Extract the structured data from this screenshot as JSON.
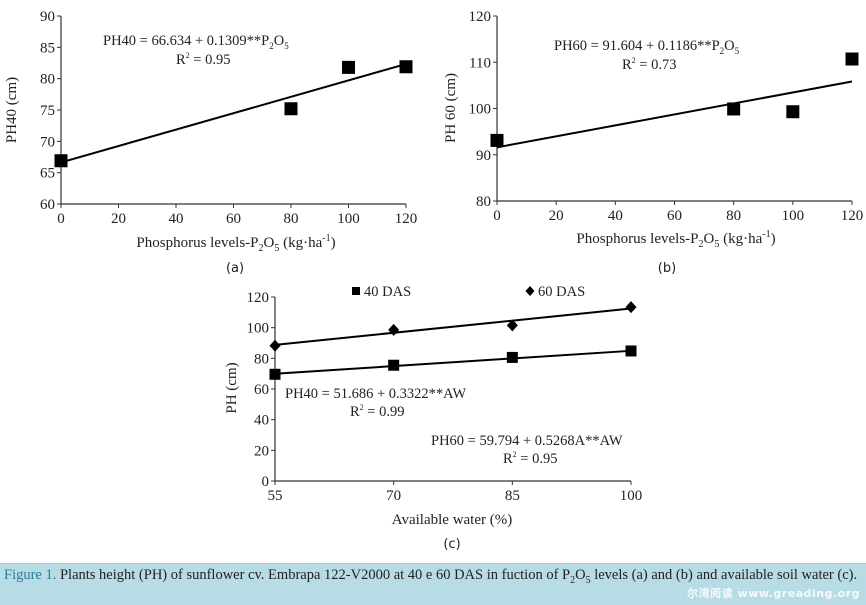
{
  "chart_data": [
    {
      "type": "scatter",
      "panel_label": "(a)",
      "xlabel": "Phosphorus levels-P",
      "xlabel_sub": "2",
      "xlabel_mid": "O",
      "xlabel_sub2": "5",
      "xlabel_tail": " (kg·ha",
      "xlabel_sup": "-1",
      "xlabel_end": ")",
      "ylabel": "PH40 (cm)",
      "xlim": [
        0,
        120
      ],
      "ylim": [
        60,
        90
      ],
      "xticks": [
        "0",
        "20",
        "40",
        "60",
        "80",
        "100",
        "120"
      ],
      "xtick_values": [
        0,
        20,
        40,
        60,
        80,
        100,
        120
      ],
      "yticks": [
        "60",
        "65",
        "70",
        "75",
        "80",
        "85",
        "90"
      ],
      "ytick_values": [
        60,
        65,
        70,
        75,
        80,
        85,
        90
      ],
      "series": [
        {
          "name": "PH40",
          "marker": "square",
          "x": [
            0,
            80,
            100,
            120
          ],
          "y": [
            66.9,
            75.2,
            81.8,
            81.9
          ]
        }
      ],
      "fit": {
        "intercept": 66.634,
        "slope": 0.1309,
        "x_range": [
          0,
          120
        ]
      },
      "equation": {
        "lhs": "PH40 = 66.634 + 0.1309**P",
        "sub1": "2",
        "mid": "O",
        "sub2": "5",
        "r2_label": "R",
        "r2_sup": "2",
        "r2_value": " = 0.95"
      }
    },
    {
      "type": "scatter",
      "panel_label": "(b)",
      "xlabel": "Phosphorus levels-P",
      "xlabel_sub": "2",
      "xlabel_mid": "O",
      "xlabel_sub2": "5",
      "xlabel_tail": " (kg·ha",
      "xlabel_sup": "-1",
      "xlabel_end": ")",
      "ylabel": "PH 60 (cm)",
      "xlim": [
        0,
        120
      ],
      "ylim": [
        80,
        120
      ],
      "xticks": [
        "0",
        "20",
        "40",
        "60",
        "80",
        "100",
        "120"
      ],
      "xtick_values": [
        0,
        20,
        40,
        60,
        80,
        100,
        120
      ],
      "yticks": [
        "80",
        "90",
        "100",
        "110",
        "120"
      ],
      "ytick_values": [
        80,
        90,
        100,
        110,
        120
      ],
      "series": [
        {
          "name": "PH60",
          "marker": "square",
          "x": [
            0,
            80,
            100,
            120
          ],
          "y": [
            93.1,
            99.9,
            99.3,
            110.7
          ]
        }
      ],
      "fit": {
        "intercept": 91.604,
        "slope": 0.1186,
        "x_range": [
          0,
          120
        ]
      },
      "equation": {
        "lhs": "PH60 = 91.604 + 0.1186**P",
        "sub1": "2",
        "mid": "O",
        "sub2": "5",
        "r2_label": "R",
        "r2_sup": "2",
        "r2_value": " = 0.73"
      }
    },
    {
      "type": "scatter",
      "panel_label": "(c)",
      "xlabel": "Available water (%)",
      "ylabel": "PH (cm)",
      "xlim": [
        55,
        100
      ],
      "ylim": [
        0,
        120
      ],
      "xticks": [
        "55",
        "70",
        "85",
        "100"
      ],
      "xtick_values": [
        55,
        70,
        85,
        100
      ],
      "yticks": [
        "0",
        "20",
        "40",
        "60",
        "80",
        "100",
        "120"
      ],
      "ytick_values": [
        0,
        20,
        40,
        60,
        80,
        100,
        120
      ],
      "legend_position": "top",
      "series": [
        {
          "name": "40 DAS",
          "marker": "square",
          "x": [
            55,
            70,
            85,
            100
          ],
          "y": [
            69.6,
            75.5,
            80.6,
            84.8
          ],
          "fit": {
            "intercept": 51.686,
            "slope": 0.3322
          }
        },
        {
          "name": "60 DAS",
          "marker": "diamond",
          "x": [
            55,
            70,
            85,
            100
          ],
          "y": [
            88.2,
            98.6,
            101.5,
            113.4
          ],
          "fit": {
            "intercept": 59.794,
            "slope": 0.5268
          }
        }
      ],
      "equations": [
        {
          "lhs": "PH40 = 51.686 + 0.3322**AW",
          "r2_label": "R",
          "r2_sup": "2",
          "r2_value": " = 0.99"
        },
        {
          "lhs": "PH60 = 59.794 + 0.5268A**AW",
          "r2_label": "R",
          "r2_sup": "2",
          "r2_value": " = 0.95"
        }
      ]
    }
  ],
  "caption": {
    "label": "Figure 1.",
    "text1": " Plants height (PH) of sunflower cv. Embrapa 122-V2000 at 40 e 60 DAS in fuction of P",
    "sub1": "2",
    "mid": "O",
    "sub2": "5",
    "text2": " levels (a) and (b) and available soil water (c).",
    "label_color": "#2c7c9c",
    "background": "#b7dce6"
  },
  "watermark": "尔湾阅读 www.greading.org"
}
